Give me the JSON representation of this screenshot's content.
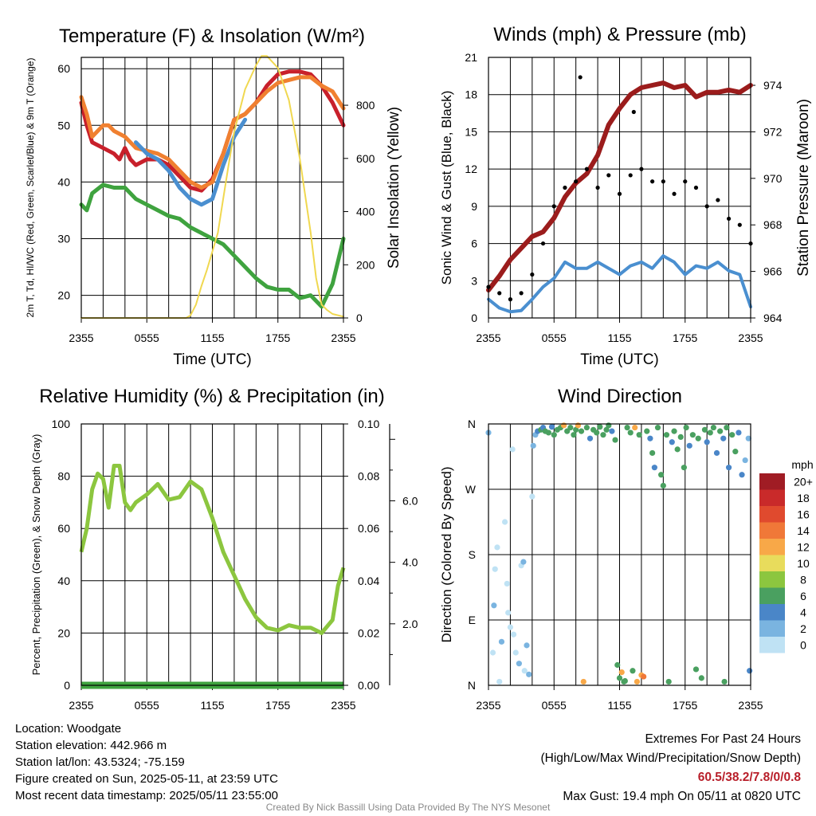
{
  "chart_data": [
    {
      "type": "line",
      "title": "Temperature (F) & Insolation (W/m²)",
      "xlabel": "Time (UTC)",
      "ylabel": "2m T, Td, HI/WC (Red, Green, Scarlet/Blue) & 9m T (Orange)",
      "y2label": "Solar Insolation (Yellow)",
      "x_ticks": [
        "2355",
        "0555",
        "1155",
        "1755",
        "2355"
      ],
      "ylim": [
        16,
        62
      ],
      "y_ticks": [
        20,
        30,
        40,
        50,
        60
      ],
      "y2lim": [
        0,
        980
      ],
      "y2_ticks": [
        0,
        200,
        400,
        600,
        800
      ],
      "grid": true,
      "series": [
        {
          "name": "2m T",
          "color": "#c8202b",
          "axis": "left",
          "x": [
            0,
            0.5,
            1,
            2,
            3,
            3.5,
            4,
            4.5,
            5,
            6,
            7,
            8,
            9,
            10,
            11,
            12,
            13,
            14,
            15,
            16,
            17,
            18,
            19,
            20,
            21,
            22,
            23,
            24
          ],
          "values": [
            54,
            50,
            47,
            46,
            45,
            44,
            46,
            44,
            43,
            44,
            44,
            43,
            41,
            39,
            38.5,
            40.5,
            45,
            51,
            52,
            54,
            57,
            59,
            59.5,
            59.5,
            59,
            57,
            54,
            50
          ]
        },
        {
          "name": "9m T",
          "color": "#f08030",
          "axis": "left",
          "x": [
            0,
            0.5,
            1,
            2,
            2.5,
            3,
            4,
            5,
            6,
            7,
            8,
            9,
            10,
            11,
            12,
            13,
            14,
            15,
            16,
            17,
            18,
            19,
            20,
            21,
            22,
            23,
            24
          ],
          "values": [
            55,
            52,
            48,
            50,
            50,
            49,
            48,
            46,
            45.5,
            45,
            44,
            42,
            40,
            39,
            40,
            45,
            51,
            52,
            54,
            56,
            57.5,
            58,
            58.5,
            58.5,
            57,
            56,
            53
          ]
        },
        {
          "name": "HI/WC",
          "color": "#4a8fd0",
          "axis": "left",
          "x": [
            5,
            6,
            7,
            8,
            9,
            10,
            11,
            12,
            13,
            14,
            15
          ],
          "values": [
            47,
            45,
            44,
            42,
            39,
            37,
            36,
            37,
            43,
            48,
            51
          ]
        },
        {
          "name": "2m Td",
          "color": "#3fa33f",
          "axis": "left",
          "x": [
            0,
            0.5,
            1,
            2,
            3,
            4,
            5,
            6,
            7,
            8,
            9,
            10,
            11,
            12,
            13,
            14,
            15,
            16,
            17,
            18,
            19,
            20,
            21,
            22,
            23,
            24
          ],
          "values": [
            36,
            35,
            38,
            39.5,
            39,
            39,
            37,
            36,
            35,
            34,
            33.5,
            32,
            31,
            30,
            29,
            27,
            25,
            23,
            21.5,
            21,
            21,
            19.5,
            20,
            18,
            22,
            30
          ]
        },
        {
          "name": "Solar Insolation",
          "color": "#f0d850",
          "axis": "right",
          "x": [
            0,
            1,
            2,
            3,
            4,
            5,
            6,
            7,
            8,
            9,
            9.6,
            10,
            10.5,
            11,
            11.5,
            12,
            12.5,
            13,
            13.5,
            14,
            15,
            16,
            16.5,
            17,
            18,
            19,
            20,
            21,
            21.5,
            22,
            22.5,
            23,
            24
          ],
          "values": [
            0,
            0,
            0,
            0,
            0,
            0,
            0,
            0,
            0,
            0,
            0,
            10,
            50,
            120,
            180,
            250,
            320,
            450,
            580,
            700,
            860,
            950,
            985,
            985,
            940,
            820,
            600,
            320,
            150,
            50,
            30,
            15,
            5
          ]
        }
      ]
    },
    {
      "type": "scatter",
      "title": "Winds (mph) & Pressure (mb)",
      "xlabel": "Time (UTC)",
      "ylabel": "Sonic Wind & Gust (Blue, Black)",
      "y2label": "Station Pressure (Maroon)",
      "x_ticks": [
        "2355",
        "0555",
        "1155",
        "1755",
        "2355"
      ],
      "ylim": [
        0,
        21
      ],
      "y_ticks": [
        0,
        3,
        6,
        9,
        12,
        15,
        18,
        21
      ],
      "y2lim": [
        964,
        975.2
      ],
      "y2_ticks": [
        964,
        966,
        968,
        970,
        972,
        974
      ],
      "grid": true,
      "series": [
        {
          "name": "Station Pressure",
          "color": "#9b1c1c",
          "axis": "right",
          "x": [
            0,
            1,
            2,
            3,
            4,
            5,
            6,
            7,
            8,
            9,
            10,
            11,
            12,
            13,
            14,
            15,
            16,
            17,
            18,
            19,
            20,
            21,
            22,
            23,
            24
          ],
          "values": [
            965.2,
            965.8,
            966.5,
            967.0,
            967.5,
            967.7,
            968.3,
            969.2,
            969.8,
            970.2,
            971.0,
            972.3,
            973.0,
            973.6,
            973.9,
            974.0,
            974.1,
            973.9,
            974.0,
            973.5,
            973.7,
            973.7,
            973.8,
            973.7,
            974.0
          ]
        },
        {
          "name": "Sonic Wind",
          "color": "#4a8fd0",
          "axis": "left",
          "x": [
            0,
            1,
            2,
            3,
            4,
            5,
            6,
            7,
            8,
            9,
            10,
            11,
            12,
            13,
            14,
            15,
            16,
            17,
            18,
            19,
            20,
            21,
            22,
            23,
            24
          ],
          "values": [
            1.5,
            0.8,
            0.5,
            0.6,
            1.5,
            2.5,
            3.2,
            4.5,
            4.0,
            4.0,
            4.5,
            4.0,
            3.5,
            4.2,
            4.5,
            4.0,
            5.0,
            4.5,
            3.5,
            4.2,
            4.0,
            4.5,
            3.8,
            3.5,
            0.9
          ]
        },
        {
          "name": "Gust",
          "color": "#000000",
          "axis": "left",
          "x": [
            0,
            1,
            2,
            3,
            4,
            5,
            6,
            7,
            8,
            8.4,
            9,
            10,
            11,
            12,
            13,
            13.3,
            14,
            15,
            16,
            17,
            18,
            19,
            20,
            21,
            22,
            23,
            24
          ],
          "values": [
            2.5,
            2.0,
            1.5,
            2.0,
            3.5,
            6.0,
            9.0,
            10.5,
            11.0,
            19.4,
            12.0,
            10.5,
            11.5,
            10.0,
            11.5,
            16.6,
            12.0,
            11.0,
            11.0,
            10.0,
            11.0,
            10.5,
            9.0,
            9.5,
            8.0,
            7.5,
            6.0
          ]
        }
      ]
    },
    {
      "type": "line",
      "title": "Relative Humidity (%) & Precipitation (in)",
      "ylabel": "Percent, Precipitation (Green), & Snow Depth (Gray)",
      "x_ticks": [
        "2355",
        "0555",
        "1155",
        "1755",
        "2355"
      ],
      "ylim": [
        0,
        100
      ],
      "y_ticks": [
        0,
        20,
        40,
        60,
        80,
        100
      ],
      "y2_ticks": [
        "0.00",
        "0.02",
        "0.04",
        "0.06",
        "0.08",
        "0.10"
      ],
      "y3_ticks": [
        "2.0",
        "4.0",
        "6.0"
      ],
      "grid": true,
      "series": [
        {
          "name": "Relative Humidity",
          "color": "#8cc63f",
          "axis": "left",
          "x": [
            0,
            0.5,
            1,
            1.5,
            2,
            2.5,
            3,
            3.5,
            4,
            4.5,
            5,
            6,
            7,
            8,
            9,
            10,
            11,
            12,
            13,
            14,
            15,
            16,
            17,
            18,
            19,
            20,
            21,
            22,
            23,
            23.5,
            24
          ],
          "values": [
            51,
            60,
            75,
            81,
            79,
            68,
            84,
            84,
            70,
            67,
            70,
            73,
            77,
            71,
            72,
            78,
            75,
            64,
            51,
            42,
            33,
            26,
            22,
            21,
            23,
            22,
            22,
            20,
            25,
            38,
            45
          ]
        },
        {
          "name": "Precipitation",
          "color": "#3fa33f",
          "axis": "left",
          "x": [
            0,
            24
          ],
          "values": [
            0,
            0
          ]
        }
      ]
    },
    {
      "type": "scatter",
      "title": "Wind Direction",
      "ylabel": "Direction (Colored By Speed)",
      "x_ticks": [
        "2355",
        "0555",
        "1155",
        "1755",
        "2355"
      ],
      "y_ticks": [
        "N",
        "E",
        "S",
        "W",
        "N"
      ],
      "ylim": [
        0,
        360
      ],
      "grid": true,
      "legend": {
        "title": "mph",
        "position": "right",
        "labels": [
          "20+",
          "18",
          "16",
          "14",
          "12",
          "10",
          "8",
          "6",
          "4",
          "2",
          "0"
        ],
        "colors": [
          "#a01c24",
          "#c92a2a",
          "#e04a2e",
          "#f07838",
          "#f8a848",
          "#e8dc5c",
          "#8cc63f",
          "#4aa060",
          "#4a86c8",
          "#7ab4e0",
          "#bfe2f4"
        ]
      },
      "points": [
        [
          0,
          348,
          1
        ],
        [
          0.4,
          45,
          0
        ],
        [
          0.5,
          110,
          1
        ],
        [
          0.6,
          160,
          0
        ],
        [
          0.8,
          190,
          0
        ],
        [
          1.0,
          5,
          0
        ],
        [
          1.2,
          60,
          1
        ],
        [
          1.5,
          225,
          0
        ],
        [
          1.7,
          140,
          0
        ],
        [
          1.8,
          100,
          0
        ],
        [
          2.0,
          80,
          0
        ],
        [
          2.2,
          325,
          0
        ],
        [
          2.3,
          70,
          0
        ],
        [
          2.5,
          45,
          0
        ],
        [
          2.8,
          30,
          1
        ],
        [
          3.0,
          165,
          0
        ],
        [
          3.2,
          170,
          1
        ],
        [
          3.3,
          20,
          0
        ],
        [
          3.5,
          55,
          1
        ],
        [
          3.7,
          15,
          1
        ],
        [
          4.0,
          260,
          0
        ],
        [
          4.1,
          330,
          1
        ],
        [
          4.3,
          345,
          1
        ],
        [
          4.5,
          350,
          2
        ],
        [
          4.8,
          352,
          3
        ],
        [
          5.0,
          355,
          2
        ],
        [
          5.2,
          350,
          3
        ],
        [
          5.5,
          348,
          3
        ],
        [
          5.8,
          356,
          2
        ],
        [
          6.0,
          345,
          3
        ],
        [
          6.3,
          352,
          3
        ],
        [
          6.6,
          355,
          3
        ],
        [
          6.9,
          358,
          6
        ],
        [
          7.2,
          350,
          3
        ],
        [
          7.5,
          355,
          3
        ],
        [
          7.8,
          345,
          3
        ],
        [
          8.0,
          352,
          3
        ],
        [
          8.2,
          358,
          6
        ],
        [
          8.5,
          350,
          3
        ],
        [
          8.7,
          5,
          6
        ],
        [
          9.0,
          355,
          3
        ],
        [
          9.3,
          340,
          2
        ],
        [
          9.6,
          352,
          3
        ],
        [
          9.9,
          348,
          3
        ],
        [
          10.2,
          356,
          3
        ],
        [
          10.5,
          345,
          3
        ],
        [
          10.8,
          352,
          3
        ],
        [
          11.0,
          358,
          3
        ],
        [
          11.3,
          350,
          2
        ],
        [
          11.6,
          338,
          3
        ],
        [
          11.8,
          28,
          3
        ],
        [
          12.0,
          10,
          3
        ],
        [
          12.2,
          18,
          6
        ],
        [
          12.4,
          5,
          3
        ],
        [
          12.7,
          355,
          3
        ],
        [
          13.0,
          348,
          3
        ],
        [
          13.2,
          20,
          3
        ],
        [
          13.4,
          355,
          6
        ],
        [
          13.6,
          5,
          6
        ],
        [
          13.8,
          345,
          3
        ],
        [
          14.0,
          14,
          6
        ],
        [
          14.2,
          12,
          7
        ],
        [
          14.5,
          350,
          3
        ],
        [
          14.8,
          340,
          2
        ],
        [
          15.0,
          320,
          3
        ],
        [
          15.2,
          300,
          2
        ],
        [
          15.5,
          355,
          3
        ],
        [
          15.8,
          290,
          3
        ],
        [
          16.0,
          275,
          3
        ],
        [
          16.3,
          345,
          3
        ],
        [
          16.5,
          5,
          3
        ],
        [
          16.8,
          335,
          2
        ],
        [
          17.0,
          350,
          3
        ],
        [
          17.3,
          325,
          3
        ],
        [
          17.6,
          342,
          3
        ],
        [
          17.9,
          300,
          3
        ],
        [
          18.1,
          355,
          3
        ],
        [
          18.4,
          330,
          2
        ],
        [
          18.7,
          345,
          3
        ],
        [
          19.0,
          22,
          3
        ],
        [
          19.2,
          340,
          3
        ],
        [
          19.5,
          10,
          3
        ],
        [
          19.8,
          352,
          3
        ],
        [
          20.0,
          335,
          2
        ],
        [
          20.3,
          348,
          3
        ],
        [
          20.6,
          355,
          3
        ],
        [
          20.9,
          320,
          2
        ],
        [
          21.2,
          350,
          3
        ],
        [
          21.5,
          340,
          2
        ],
        [
          21.8,
          355,
          3
        ],
        [
          22.0,
          300,
          2
        ],
        [
          22.3,
          345,
          3
        ],
        [
          22.6,
          322,
          3
        ],
        [
          22.9,
          348,
          2
        ],
        [
          23.2,
          290,
          2
        ],
        [
          23.5,
          310,
          1
        ],
        [
          23.8,
          340,
          1
        ],
        [
          23.9,
          20,
          2
        ],
        [
          21.6,
          5,
          3
        ],
        [
          12.5,
          6,
          3
        ]
      ]
    }
  ],
  "info": {
    "location": "Location: Woodgate",
    "elevation": "Station elevation: 442.966 m",
    "latlon": "Station lat/lon: 43.5324; -75.159",
    "created": "Figure created on Sun, 2025-05-11, at 23:59 UTC",
    "recent": "Most recent data timestamp: 2025/05/11 23:55:00"
  },
  "extremes": {
    "title": "Extremes For Past 24 Hours",
    "subtitle": "(High/Low/Max Wind/Precipitation/Snow Depth)",
    "values": "60.5/38.2/7.8/0/0.8",
    "max_gust": "Max Gust: 19.4 mph On 05/11 at 0820 UTC"
  },
  "credit": "Created By Nick Bassill Using Data Provided By The NYS Mesonet"
}
